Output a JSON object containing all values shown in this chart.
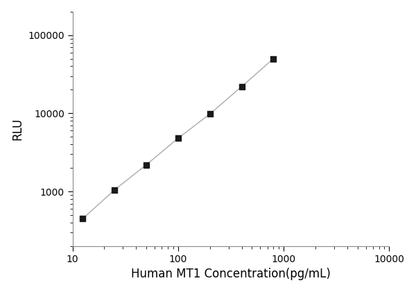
{
  "x_data": [
    12.5,
    25,
    50,
    100,
    200,
    400,
    800
  ],
  "y_data": [
    450,
    1050,
    2200,
    4800,
    9800,
    22000,
    50000
  ],
  "xlabel": "Human MT1 Concentration(pg/mL)",
  "ylabel": "RLU",
  "xlim": [
    10,
    10000
  ],
  "ylim": [
    200,
    200000
  ],
  "line_color": "#aaaaaa",
  "marker_color": "#1a1a1a",
  "marker_size": 6,
  "line_width": 1.0,
  "background_color": "#ffffff",
  "xlabel_fontsize": 12,
  "ylabel_fontsize": 12,
  "tick_fontsize": 10,
  "ytick_labels": [
    "1000",
    "10000",
    "100000"
  ],
  "ytick_values": [
    1000,
    10000,
    100000
  ],
  "xtick_labels": [
    "10",
    "100",
    "1000",
    "10000"
  ],
  "xtick_values": [
    10,
    100,
    1000,
    10000
  ]
}
